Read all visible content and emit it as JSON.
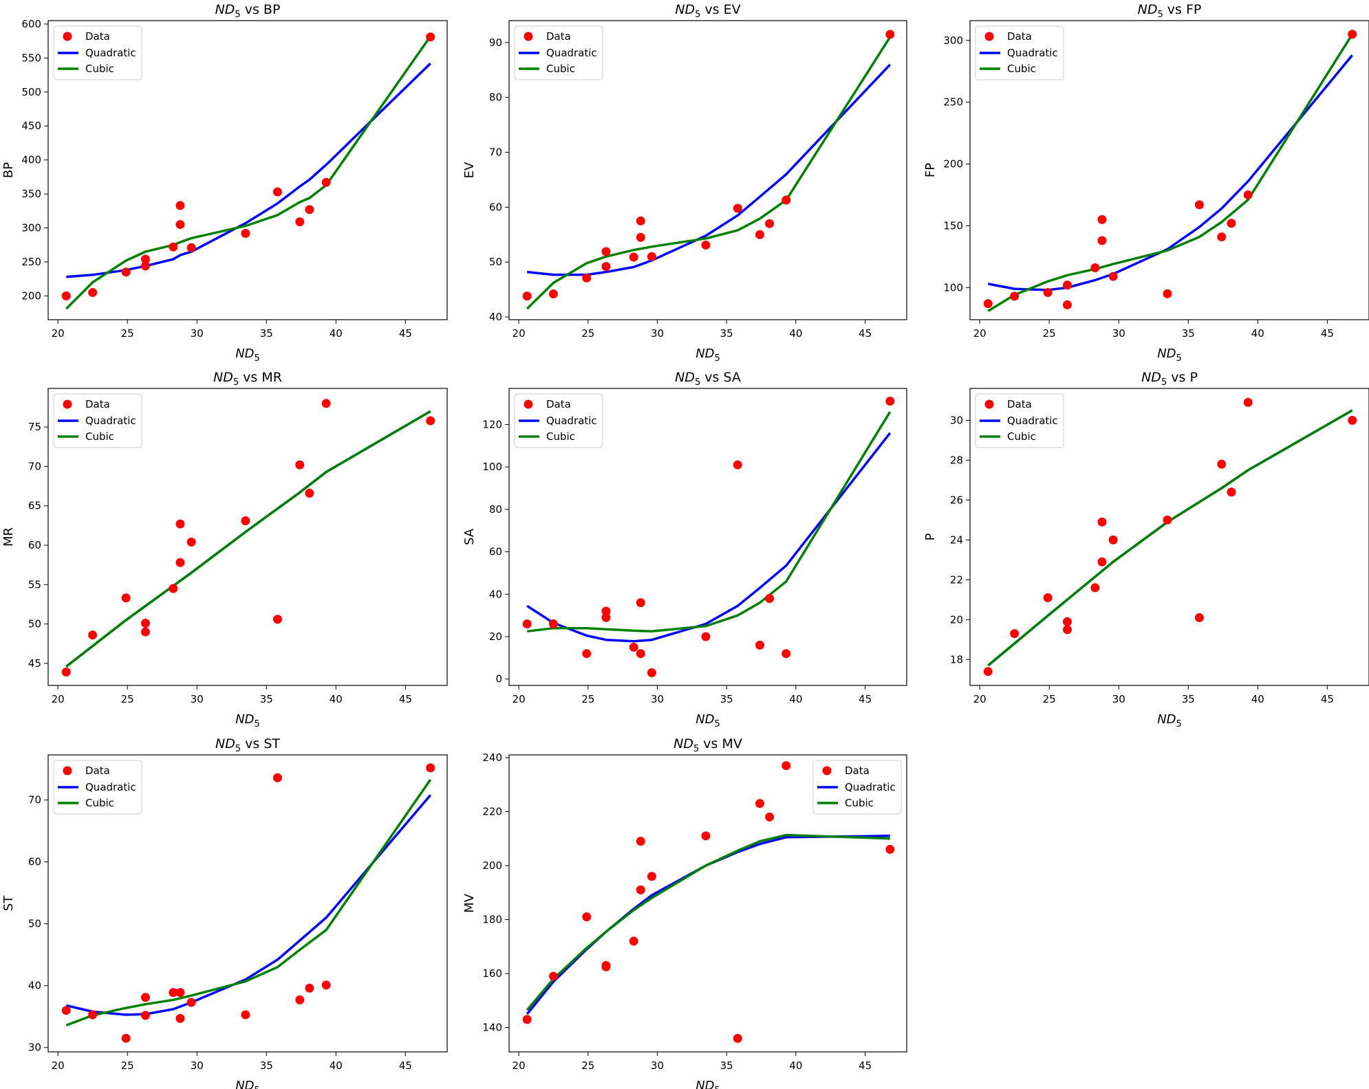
{
  "legend": {
    "data": "Data",
    "quadratic": "Quadratic",
    "cubic": "Cubic"
  },
  "colors": {
    "data": "#ff0000",
    "quadratic": "#0000ff",
    "cubic": "#008000"
  },
  "chart_data": [
    {
      "type": "scatter",
      "title_prefix": "ND",
      "title_sub": "5",
      "title_suffix": " vs BP",
      "xlabel_main": "ND",
      "xlabel_sub": "5",
      "ylabel": "BP",
      "xlim": [
        19.3,
        48.0
      ],
      "ylim": [
        165,
        605
      ],
      "xticks": [
        20,
        25,
        30,
        35,
        40,
        45
      ],
      "yticks": [
        200,
        250,
        300,
        350,
        400,
        450,
        500,
        550,
        600
      ],
      "legend_position": "upper-left",
      "x": [
        20.6,
        22.5,
        24.9,
        26.3,
        26.3,
        28.3,
        28.8,
        28.8,
        29.6,
        33.5,
        35.8,
        37.4,
        38.1,
        39.3,
        46.8
      ],
      "y": [
        200,
        205,
        235,
        244,
        254,
        272,
        305,
        333,
        271,
        292,
        353,
        309,
        327,
        367,
        581
      ],
      "quadratic": [
        [
          20.6,
          228
        ],
        [
          22.5,
          231
        ],
        [
          24.9,
          238
        ],
        [
          26.3,
          244
        ],
        [
          28.3,
          254
        ],
        [
          28.8,
          260
        ],
        [
          29.6,
          265
        ],
        [
          33.5,
          307
        ],
        [
          35.8,
          336
        ],
        [
          37.4,
          361
        ],
        [
          38.1,
          371
        ],
        [
          39.3,
          393
        ],
        [
          46.8,
          542
        ]
      ],
      "cubic": [
        [
          20.6,
          181
        ],
        [
          22.5,
          220
        ],
        [
          24.9,
          252
        ],
        [
          26.3,
          265
        ],
        [
          28.3,
          275
        ],
        [
          28.8,
          279
        ],
        [
          29.6,
          285
        ],
        [
          33.5,
          303
        ],
        [
          35.8,
          319
        ],
        [
          37.4,
          338
        ],
        [
          38.1,
          344
        ],
        [
          39.3,
          363
        ],
        [
          46.8,
          582
        ]
      ]
    },
    {
      "type": "scatter",
      "title_prefix": "ND",
      "title_sub": "5",
      "title_suffix": " vs EV",
      "xlabel_main": "ND",
      "xlabel_sub": "5",
      "ylabel": "EV",
      "xlim": [
        19.3,
        48.0
      ],
      "ylim": [
        39.5,
        94.0
      ],
      "xticks": [
        20,
        25,
        30,
        35,
        40,
        45
      ],
      "yticks": [
        40,
        50,
        60,
        70,
        80,
        90
      ],
      "legend_position": "upper-left",
      "x": [
        20.6,
        22.5,
        24.9,
        26.3,
        26.3,
        28.3,
        28.8,
        28.8,
        29.6,
        33.5,
        35.8,
        37.4,
        38.1,
        39.3,
        46.8
      ],
      "y": [
        43.8,
        44.2,
        47.1,
        49.2,
        51.9,
        50.9,
        54.5,
        57.5,
        51.0,
        53.1,
        59.8,
        55.0,
        57.0,
        61.3,
        91.5
      ],
      "quadratic": [
        [
          20.6,
          48.2
        ],
        [
          22.5,
          47.7
        ],
        [
          24.9,
          47.7
        ],
        [
          26.3,
          48.2
        ],
        [
          28.3,
          49.1
        ],
        [
          29.6,
          50.3
        ],
        [
          33.5,
          54.8
        ],
        [
          35.8,
          58.5
        ],
        [
          37.4,
          61.9
        ],
        [
          39.3,
          66.0
        ],
        [
          46.8,
          86.0
        ]
      ],
      "cubic": [
        [
          20.6,
          41.5
        ],
        [
          22.5,
          46.2
        ],
        [
          24.9,
          49.8
        ],
        [
          26.3,
          51.0
        ],
        [
          28.3,
          52.2
        ],
        [
          29.6,
          52.8
        ],
        [
          33.5,
          54.3
        ],
        [
          35.8,
          55.8
        ],
        [
          37.4,
          57.9
        ],
        [
          39.3,
          61.3
        ],
        [
          46.8,
          91.0
        ]
      ]
    },
    {
      "type": "scatter",
      "title_prefix": "ND",
      "title_sub": "5",
      "title_suffix": " vs FP",
      "xlabel_main": "ND",
      "xlabel_sub": "5",
      "ylabel": "FP",
      "xlim": [
        19.3,
        48.0
      ],
      "ylim": [
        74,
        316
      ],
      "xticks": [
        20,
        25,
        30,
        35,
        40,
        45
      ],
      "yticks": [
        100,
        150,
        200,
        250,
        300
      ],
      "legend_position": "upper-left",
      "x": [
        20.6,
        22.5,
        24.9,
        26.3,
        26.3,
        28.3,
        28.8,
        28.8,
        29.6,
        33.5,
        35.8,
        37.4,
        38.1,
        39.3,
        46.8
      ],
      "y": [
        87,
        93,
        96,
        86,
        102,
        116,
        138,
        155,
        109,
        95,
        167,
        141,
        152,
        175,
        305
      ],
      "quadratic": [
        [
          20.6,
          103
        ],
        [
          22.5,
          99
        ],
        [
          24.9,
          98
        ],
        [
          26.3,
          100
        ],
        [
          28.3,
          106
        ],
        [
          29.6,
          111
        ],
        [
          33.5,
          131
        ],
        [
          35.8,
          149
        ],
        [
          37.4,
          164
        ],
        [
          39.3,
          186
        ],
        [
          46.8,
          288
        ]
      ],
      "cubic": [
        [
          20.6,
          81
        ],
        [
          22.5,
          94
        ],
        [
          24.9,
          105
        ],
        [
          26.3,
          110
        ],
        [
          28.3,
          115
        ],
        [
          29.6,
          119
        ],
        [
          33.5,
          130
        ],
        [
          35.8,
          141
        ],
        [
          37.4,
          153
        ],
        [
          39.3,
          171
        ],
        [
          46.8,
          305
        ]
      ]
    },
    {
      "type": "scatter",
      "title_prefix": "ND",
      "title_sub": "5",
      "title_suffix": " vs MR",
      "xlabel_main": "ND",
      "xlabel_sub": "5",
      "ylabel": "MR",
      "xlim": [
        19.3,
        48.0
      ],
      "ylim": [
        42.2,
        79.9
      ],
      "xticks": [
        20,
        25,
        30,
        35,
        40,
        45
      ],
      "yticks": [
        45,
        50,
        55,
        60,
        65,
        70,
        75
      ],
      "legend_position": "upper-left",
      "x": [
        20.6,
        22.5,
        24.9,
        26.3,
        26.3,
        28.3,
        28.8,
        28.8,
        29.6,
        33.5,
        35.8,
        37.4,
        38.1,
        39.3,
        46.8
      ],
      "y": [
        43.9,
        48.6,
        53.3,
        50.1,
        49.0,
        54.5,
        57.8,
        62.7,
        60.4,
        63.1,
        50.6,
        70.2,
        66.6,
        78.0,
        75.8
      ],
      "quadratic": [
        [
          20.6,
          44.6
        ],
        [
          24.9,
          50.5
        ],
        [
          29.6,
          56.5
        ],
        [
          33.5,
          61.7
        ],
        [
          37.4,
          66.7
        ],
        [
          39.3,
          69.3
        ],
        [
          46.8,
          77.0
        ]
      ],
      "cubic": [
        [
          20.6,
          44.6
        ],
        [
          24.9,
          50.5
        ],
        [
          29.6,
          56.5
        ],
        [
          33.5,
          61.7
        ],
        [
          37.4,
          66.7
        ],
        [
          39.3,
          69.3
        ],
        [
          46.8,
          77.0
        ]
      ]
    },
    {
      "type": "scatter",
      "title_prefix": "ND",
      "title_sub": "5",
      "title_suffix": " vs SA",
      "xlabel_main": "ND",
      "xlabel_sub": "5",
      "ylabel": "SA",
      "xlim": [
        19.3,
        48.0
      ],
      "ylim": [
        -3,
        137
      ],
      "xticks": [
        20,
        25,
        30,
        35,
        40,
        45
      ],
      "yticks": [
        0,
        20,
        40,
        60,
        80,
        100,
        120
      ],
      "legend_position": "upper-left",
      "x": [
        20.6,
        22.5,
        24.9,
        26.3,
        26.3,
        28.3,
        28.8,
        28.8,
        29.6,
        33.5,
        35.8,
        37.4,
        38.1,
        39.3,
        46.8
      ],
      "y": [
        26,
        26,
        12,
        29,
        32,
        15,
        36,
        12,
        3,
        20,
        101,
        16,
        38,
        12,
        131
      ],
      "quadratic": [
        [
          20.6,
          34.5
        ],
        [
          22.5,
          26.5
        ],
        [
          24.9,
          20.5
        ],
        [
          26.3,
          18.5
        ],
        [
          28.3,
          17.8
        ],
        [
          29.6,
          18.5
        ],
        [
          33.5,
          26
        ],
        [
          35.8,
          34.5
        ],
        [
          37.4,
          43
        ],
        [
          39.3,
          53.5
        ],
        [
          46.8,
          116
        ]
      ],
      "cubic": [
        [
          20.6,
          22.5
        ],
        [
          22.5,
          24
        ],
        [
          24.9,
          24
        ],
        [
          26.3,
          23.5
        ],
        [
          28.3,
          22.8
        ],
        [
          29.6,
          22.5
        ],
        [
          33.5,
          25
        ],
        [
          35.8,
          30
        ],
        [
          37.4,
          36
        ],
        [
          39.3,
          46
        ],
        [
          46.8,
          126
        ]
      ]
    },
    {
      "type": "scatter",
      "title_prefix": "ND",
      "title_sub": "5",
      "title_suffix": " vs P",
      "xlabel_main": "ND",
      "xlabel_sub": "5",
      "ylabel": "P",
      "xlim": [
        19.3,
        48.0
      ],
      "ylim": [
        16.7,
        31.6
      ],
      "xticks": [
        20,
        25,
        30,
        35,
        40,
        45
      ],
      "yticks": [
        18,
        20,
        22,
        24,
        26,
        28,
        30
      ],
      "legend_position": "upper-left",
      "x": [
        20.6,
        22.5,
        24.9,
        26.3,
        26.3,
        28.3,
        28.8,
        28.8,
        29.6,
        33.5,
        35.8,
        37.4,
        38.1,
        39.3,
        46.8
      ],
      "y": [
        17.4,
        19.3,
        21.1,
        19.9,
        19.5,
        21.6,
        22.9,
        24.9,
        24.0,
        25.0,
        20.1,
        27.8,
        26.4,
        30.9,
        30.0
      ],
      "quadratic": [
        [
          20.6,
          17.7
        ],
        [
          24.9,
          20.2
        ],
        [
          29.6,
          22.9
        ],
        [
          33.5,
          24.9
        ],
        [
          37.4,
          26.6
        ],
        [
          39.3,
          27.5
        ],
        [
          46.8,
          30.5
        ]
      ],
      "cubic": [
        [
          20.6,
          17.7
        ],
        [
          24.9,
          20.2
        ],
        [
          29.6,
          22.9
        ],
        [
          33.5,
          24.9
        ],
        [
          37.4,
          26.6
        ],
        [
          39.3,
          27.5
        ],
        [
          46.8,
          30.5
        ]
      ]
    },
    {
      "type": "scatter",
      "title_prefix": "ND",
      "title_sub": "5",
      "title_suffix": " vs ST",
      "xlabel_main": "ND",
      "xlabel_sub": "5",
      "ylabel": "ST",
      "xlim": [
        19.3,
        48.0
      ],
      "ylim": [
        29.3,
        77.3
      ],
      "xticks": [
        20,
        25,
        30,
        35,
        40,
        45
      ],
      "yticks": [
        30,
        40,
        50,
        60,
        70
      ],
      "legend_position": "upper-left",
      "x": [
        20.6,
        22.5,
        24.9,
        26.3,
        26.3,
        28.3,
        28.8,
        28.8,
        29.6,
        33.5,
        35.8,
        37.4,
        38.1,
        39.3,
        46.8
      ],
      "y": [
        36.0,
        35.3,
        31.5,
        35.2,
        38.1,
        38.9,
        38.9,
        34.7,
        37.3,
        35.3,
        73.6,
        37.7,
        39.6,
        40.1,
        75.2
      ],
      "quadratic": [
        [
          20.6,
          36.8
        ],
        [
          22.5,
          35.8
        ],
        [
          24.9,
          35.3
        ],
        [
          26.3,
          35.4
        ],
        [
          28.3,
          36.2
        ],
        [
          29.6,
          37.3
        ],
        [
          33.5,
          41.0
        ],
        [
          35.8,
          44.2
        ],
        [
          37.4,
          47.3
        ],
        [
          39.3,
          51.0
        ],
        [
          46.8,
          70.8
        ]
      ],
      "cubic": [
        [
          20.6,
          33.6
        ],
        [
          22.5,
          35.2
        ],
        [
          24.9,
          36.4
        ],
        [
          26.3,
          37.0
        ],
        [
          28.3,
          37.7
        ],
        [
          29.6,
          38.4
        ],
        [
          33.5,
          40.7
        ],
        [
          35.8,
          43.0
        ],
        [
          37.4,
          45.8
        ],
        [
          39.3,
          49.0
        ],
        [
          46.8,
          73.3
        ]
      ]
    },
    {
      "type": "scatter",
      "title_prefix": "ND",
      "title_sub": "5",
      "title_suffix": " vs MV",
      "xlabel_main": "ND",
      "xlabel_sub": "5",
      "ylabel": "MV",
      "xlim": [
        19.3,
        48.0
      ],
      "ylim": [
        131,
        241
      ],
      "xticks": [
        20,
        25,
        30,
        35,
        40,
        45
      ],
      "yticks": [
        140,
        160,
        180,
        200,
        220,
        240
      ],
      "legend_position": "upper-right",
      "x": [
        20.6,
        22.5,
        24.9,
        26.3,
        26.3,
        28.3,
        28.8,
        28.8,
        29.6,
        33.5,
        35.8,
        37.4,
        38.1,
        39.3,
        46.8
      ],
      "y": [
        143,
        159,
        181,
        163,
        162.5,
        172,
        191,
        209,
        196,
        211,
        136,
        223,
        218,
        237,
        206
      ],
      "quadratic": [
        [
          20.6,
          145
        ],
        [
          22.5,
          157
        ],
        [
          24.9,
          169
        ],
        [
          26.3,
          175.5
        ],
        [
          28.3,
          184
        ],
        [
          29.6,
          189
        ],
        [
          33.5,
          200
        ],
        [
          35.8,
          205
        ],
        [
          37.4,
          208
        ],
        [
          39.3,
          210.5
        ],
        [
          46.8,
          211
        ]
      ],
      "cubic": [
        [
          20.6,
          146.5
        ],
        [
          22.5,
          158
        ],
        [
          24.9,
          169.5
        ],
        [
          26.3,
          175.5
        ],
        [
          28.3,
          183.5
        ],
        [
          29.6,
          188
        ],
        [
          33.5,
          200
        ],
        [
          35.8,
          205.5
        ],
        [
          37.4,
          209
        ],
        [
          39.3,
          211.3
        ],
        [
          46.8,
          210
        ]
      ]
    }
  ]
}
